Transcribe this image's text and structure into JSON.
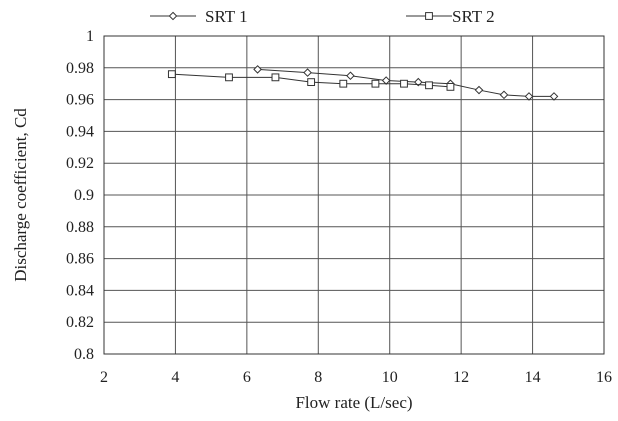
{
  "chart_data": {
    "type": "line",
    "title": "",
    "xlabel": "Flow rate (L/sec)",
    "ylabel": "Discharge coefficient, Cd",
    "xlim": [
      2,
      16
    ],
    "ylim": [
      0.8,
      1.0
    ],
    "xticks": [
      2,
      4,
      6,
      8,
      10,
      12,
      14,
      16
    ],
    "yticks": [
      0.8,
      0.82,
      0.84,
      0.86,
      0.88,
      0.9,
      0.92,
      0.94,
      0.96,
      0.98,
      1
    ],
    "xtick_labels": [
      "2",
      "4",
      "6",
      "8",
      "10",
      "12",
      "14",
      "16"
    ],
    "ytick_labels": [
      "0.8",
      "0.82",
      "0.84",
      "0.86",
      "0.88",
      "0.9",
      "0.92",
      "0.94",
      "0.96",
      "0.98",
      "1"
    ],
    "grid": "vertical and horizontal",
    "legend_position": "top",
    "series": [
      {
        "name": "SRT 1",
        "marker": "diamond",
        "color": "#333333",
        "x": [
          6.3,
          7.7,
          8.9,
          9.9,
          10.8,
          11.7,
          12.5,
          13.2,
          13.9,
          14.6
        ],
        "y": [
          0.979,
          0.977,
          0.975,
          0.972,
          0.971,
          0.97,
          0.966,
          0.963,
          0.962,
          0.962
        ]
      },
      {
        "name": "SRT 2",
        "marker": "square",
        "color": "#333333",
        "x": [
          3.9,
          5.5,
          6.8,
          7.8,
          8.7,
          9.6,
          10.4,
          11.1,
          11.7
        ],
        "y": [
          0.976,
          0.974,
          0.974,
          0.971,
          0.97,
          0.97,
          0.97,
          0.969,
          0.968
        ]
      }
    ]
  }
}
